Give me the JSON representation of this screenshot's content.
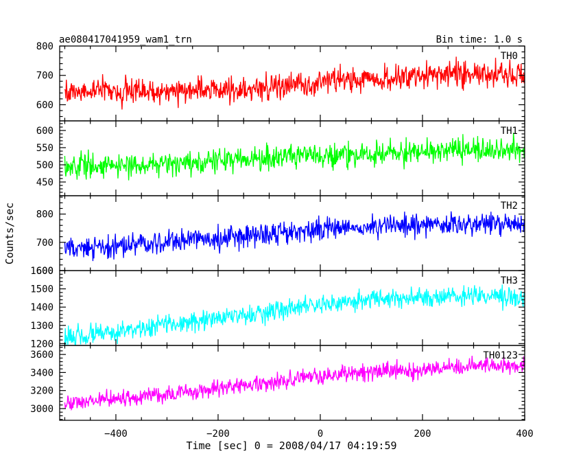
{
  "header": {
    "left_title": "ae080417041959_wam1_trn",
    "right_title": "Bin time: 1.0 s"
  },
  "chart_data": {
    "type": "line",
    "title": "ae080417041959_wam1_trn",
    "xlabel": "Time [sec] 0 = 2008/04/17 04:19:59",
    "ylabel": "Counts/sec",
    "xlim": [
      -510,
      400
    ],
    "x_ticks": [
      -400,
      -200,
      0,
      200,
      400
    ],
    "x_tick_labels": [
      "−400",
      "−200",
      "0",
      "200",
      "400"
    ],
    "x_sampling": {
      "start": -500,
      "end": 400,
      "step": 1
    },
    "grid": false,
    "panels": [
      {
        "name": "TH0",
        "color": "#ff0000",
        "ylim": [
          545,
          800
        ],
        "y_ticks": [
          600,
          700,
          800
        ],
        "trend": [
          [
            -500,
            640
          ],
          [
            -200,
            650
          ],
          [
            0,
            675
          ],
          [
            200,
            700
          ],
          [
            400,
            705
          ]
        ],
        "noise_amplitude": 30
      },
      {
        "name": "TH1",
        "color": "#00ff00",
        "ylim": [
          410,
          628
        ],
        "y_ticks": [
          450,
          500,
          550,
          600
        ],
        "trend": [
          [
            -500,
            495
          ],
          [
            -200,
            510
          ],
          [
            0,
            525
          ],
          [
            200,
            540
          ],
          [
            400,
            542
          ]
        ],
        "noise_amplitude": 24
      },
      {
        "name": "TH2",
        "color": "#0000ff",
        "ylim": [
          600,
          865
        ],
        "y_ticks": [
          600,
          700,
          800
        ],
        "trend": [
          [
            -500,
            675
          ],
          [
            -200,
            715
          ],
          [
            0,
            745
          ],
          [
            200,
            765
          ],
          [
            400,
            765
          ]
        ],
        "noise_amplitude": 28
      },
      {
        "name": "TH3",
        "color": "#00ffff",
        "ylim": [
          1190,
          1600
        ],
        "y_ticks": [
          1200,
          1300,
          1400,
          1500,
          1600
        ],
        "trend": [
          [
            -500,
            1235
          ],
          [
            -300,
            1300
          ],
          [
            -100,
            1380
          ],
          [
            100,
            1440
          ],
          [
            300,
            1460
          ],
          [
            400,
            1450
          ]
        ],
        "noise_amplitude": 38
      },
      {
        "name": "TH0123",
        "color": "#ff00ff",
        "ylim": [
          2870,
          3700
        ],
        "y_ticks": [
          3000,
          3200,
          3400,
          3600
        ],
        "trend": [
          [
            -500,
            3060
          ],
          [
            -300,
            3150
          ],
          [
            -100,
            3290
          ],
          [
            100,
            3410
          ],
          [
            300,
            3470
          ],
          [
            400,
            3480
          ]
        ],
        "noise_amplitude": 65
      }
    ]
  }
}
